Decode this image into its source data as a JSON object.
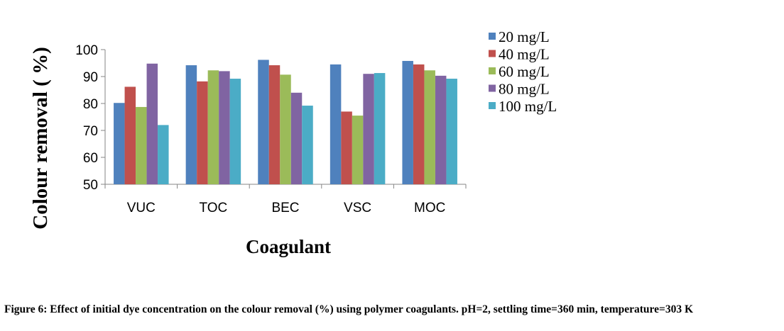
{
  "chart_data": {
    "type": "bar",
    "title": "",
    "xlabel": "Coagulant",
    "ylabel": "Colour removal ( %)",
    "ylim": [
      50,
      100
    ],
    "yticks": [
      50,
      60,
      70,
      80,
      90,
      100
    ],
    "categories": [
      "VUC",
      "TOC",
      "BEC",
      "VSC",
      "MOC"
    ],
    "series": [
      {
        "name": "20 mg/L",
        "color": "#4F81BD",
        "values": [
          80.2,
          94.2,
          96.2,
          94.5,
          95.8
        ]
      },
      {
        "name": "40 mg/L",
        "color": "#C0504D",
        "values": [
          86.2,
          88.2,
          94.2,
          77.0,
          94.5
        ]
      },
      {
        "name": "60 mg/L",
        "color": "#9BBB59",
        "values": [
          78.7,
          92.3,
          90.7,
          75.5,
          92.3
        ]
      },
      {
        "name": "80 mg/L",
        "color": "#8064A2",
        "values": [
          94.8,
          92.0,
          84.0,
          91.0,
          90.3
        ]
      },
      {
        "name": "100 mg/L",
        "color": "#4BACC6",
        "values": [
          72.0,
          89.2,
          79.2,
          91.3,
          89.2
        ]
      }
    ],
    "grid": false,
    "legend_position": "right"
  },
  "caption": "Figure 6: Effect of initial dye concentration on the colour removal (%) using polymer coagulants. pH=2, settling time=360 min, temperature=303 K"
}
